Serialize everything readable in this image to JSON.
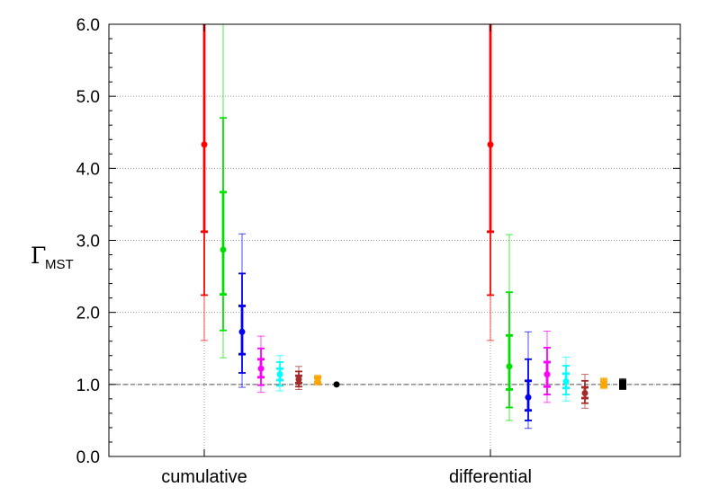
{
  "chart_data": {
    "type": "scatter",
    "categories": [
      "cumulative",
      "differential"
    ],
    "ylabel_symbol": "Γ",
    "ylabel_subscript": "MST",
    "ylim": [
      0.0,
      6.0
    ],
    "yticks": [
      "0.0",
      "1.0",
      "2.0",
      "3.0",
      "4.0",
      "5.0",
      "6.0"
    ],
    "ytick_values": [
      0,
      1,
      2,
      3,
      4,
      5,
      6
    ],
    "reference_line": 1.0,
    "grid": "horizontal dotted at major ticks; vertical dotted at category positions",
    "series": [
      {
        "color": "#ff0000",
        "marker": "circle",
        "points": [
          {
            "category": "cumulative",
            "offset": 0,
            "value": 4.33,
            "err1": [
              3.12,
              6.0
            ],
            "err2": [
              2.24,
              6.0
            ],
            "err3": [
              1.61,
              6.0
            ]
          },
          {
            "category": "differential",
            "offset": 0,
            "value": 4.33,
            "err1": [
              3.12,
              6.0
            ],
            "err2": [
              2.24,
              6.0
            ],
            "err3": [
              1.61,
              6.0
            ]
          }
        ]
      },
      {
        "color": "#00e000",
        "marker": "circle",
        "points": [
          {
            "category": "cumulative",
            "offset": 1,
            "value": 2.87,
            "err1": [
              2.25,
              3.67
            ],
            "err2": [
              1.75,
              4.7
            ],
            "err3": [
              1.37,
              6.0
            ]
          },
          {
            "category": "differential",
            "offset": 1,
            "value": 1.25,
            "err1": [
              0.93,
              1.68
            ],
            "err2": [
              0.68,
              2.28
            ],
            "err3": [
              0.5,
              3.08
            ]
          }
        ]
      },
      {
        "color": "#0000ee",
        "marker": "circle",
        "points": [
          {
            "category": "cumulative",
            "offset": 2,
            "value": 1.73,
            "err1": [
              1.42,
              2.09
            ],
            "err2": [
              1.16,
              2.54
            ],
            "err3": [
              0.96,
              3.09
            ]
          },
          {
            "category": "differential",
            "offset": 2,
            "value": 0.82,
            "err1": [
              0.64,
              1.05
            ],
            "err2": [
              0.5,
              1.35
            ],
            "err3": [
              0.39,
              1.73
            ]
          }
        ]
      },
      {
        "color": "#ff00ff",
        "marker": "circle",
        "points": [
          {
            "category": "cumulative",
            "offset": 3,
            "value": 1.22,
            "err1": [
              1.1,
              1.35
            ],
            "err2": [
              0.99,
              1.5
            ],
            "err3": [
              0.89,
              1.67
            ]
          },
          {
            "category": "differential",
            "offset": 3,
            "value": 1.14,
            "err1": [
              0.97,
              1.31
            ],
            "err2": [
              0.86,
              1.51
            ],
            "err3": [
              0.75,
              1.74
            ]
          }
        ]
      },
      {
        "color": "#00ffff",
        "marker": "circle",
        "points": [
          {
            "category": "cumulative",
            "offset": 4,
            "value": 1.14,
            "err1": [
              1.06,
              1.22
            ],
            "err2": [
              0.98,
              1.31
            ],
            "err3": [
              0.91,
              1.4
            ]
          },
          {
            "category": "differential",
            "offset": 4,
            "value": 1.04,
            "err1": [
              0.95,
              1.15
            ],
            "err2": [
              0.86,
              1.26
            ],
            "err3": [
              0.77,
              1.38
            ]
          }
        ]
      },
      {
        "color": "#a52a2a",
        "marker": "circle",
        "points": [
          {
            "category": "cumulative",
            "offset": 5,
            "value": 1.07,
            "err1": [
              1.02,
              1.12
            ],
            "err2": [
              0.97,
              1.18
            ],
            "err3": [
              0.93,
              1.25
            ]
          },
          {
            "category": "differential",
            "offset": 5,
            "value": 0.88,
            "err1": [
              0.81,
              0.96
            ],
            "err2": [
              0.74,
              1.05
            ],
            "err3": [
              0.67,
              1.14
            ]
          }
        ]
      },
      {
        "color": "#ffa500",
        "marker": "circle",
        "points": [
          {
            "category": "cumulative",
            "offset": 6,
            "value": 1.06,
            "err1": [
              1.03,
              1.09
            ],
            "err2": [
              1.01,
              1.11
            ],
            "err3": [
              0.99,
              1.13
            ]
          },
          {
            "category": "differential",
            "offset": 6,
            "value": 1.01,
            "err1": [
              0.98,
              1.04
            ],
            "err2": [
              0.96,
              1.07
            ],
            "err3": [
              0.94,
              1.09
            ]
          }
        ]
      },
      {
        "color": "#000000",
        "marker": "circle",
        "points": [
          {
            "category": "cumulative",
            "offset": 7,
            "value": 1.0,
            "err1": [
              1.0,
              1.0
            ],
            "err2": [
              1.0,
              1.0
            ],
            "err3": [
              1.0,
              1.0
            ]
          }
        ]
      },
      {
        "color": "#000000",
        "marker": "square",
        "points": [
          {
            "category": "differential",
            "offset": 7,
            "value": 1.0,
            "err1": [
              0.96,
              1.04
            ],
            "err2": [
              0.94,
              1.06
            ],
            "err3": [
              0.93,
              1.08
            ]
          }
        ]
      }
    ]
  }
}
